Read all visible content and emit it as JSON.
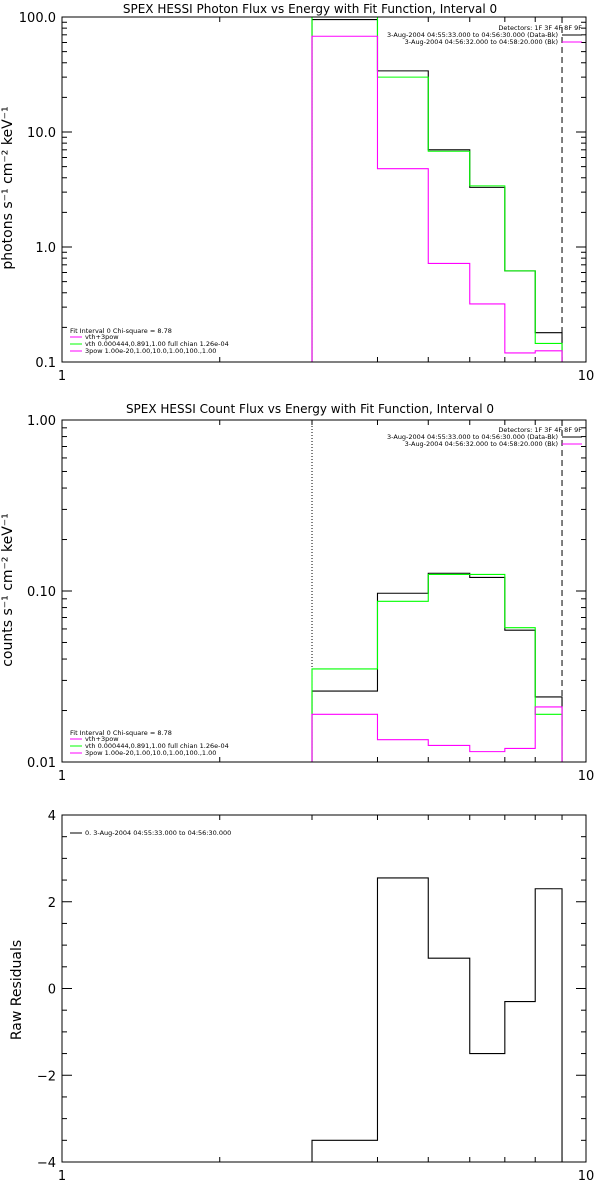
{
  "chart_data": [
    {
      "type": "line",
      "title": "SPEX HESSI Photon Flux vs Energy with Fit Function, Interval 0",
      "ylabel": "photons s⁻¹ cm⁻² keV⁻¹",
      "xlim": [
        1,
        10
      ],
      "ylim": [
        0.1,
        100
      ],
      "xscale": "log",
      "yscale": "log",
      "xticks": [
        "1",
        "10"
      ],
      "yticks": [
        "0.1",
        "1.0",
        "10.0",
        "100.0"
      ],
      "grid": false,
      "legend_placement": "bottom-left and top-right",
      "markers": [
        {
          "x": 3.0,
          "style": "dotted"
        },
        {
          "x": 9.0,
          "style": "dashed"
        }
      ],
      "detectors_label": "Detectors: 1F 3F 4F 8F 9F",
      "top_legend": [
        {
          "label": "3-Aug-2004 04:55:33.000 to 04:56:30.000 (Data-Bk)",
          "color": "#000000"
        },
        {
          "label": "3-Aug-2004 04:56:32.000 to 04:58:20.000 (Bk)",
          "color": "#ff00ff"
        }
      ],
      "fit_lines": [
        {
          "label": "Fit Interval 0   Chi-square = 8.78",
          "color": ""
        },
        {
          "label": "vth+3pow",
          "color": "#ff00ff"
        },
        {
          "label": "vth 0.000444,0.891,1.00  full chian 1.26e-04",
          "color": "#00ff00"
        },
        {
          "label": "3pow 1.00e-20,1.00,10.0,1.00,100.,1.00",
          "color": "#ff00ff"
        }
      ],
      "edges": [
        3.0,
        4.0,
        5.0,
        6.0,
        7.0,
        8.0,
        9.0
      ],
      "series": [
        {
          "name": "Data-Bk",
          "color": "#000000",
          "values": [
            95,
            34,
            7.0,
            3.3,
            0.62,
            0.18
          ]
        },
        {
          "name": "vth+3pow",
          "color": "#00ff00",
          "values": [
            140,
            30,
            6.8,
            3.4,
            0.62,
            0.145
          ]
        },
        {
          "name": "Bk",
          "color": "#ff00ff",
          "values": [
            68,
            4.8,
            0.72,
            0.32,
            0.12,
            0.125
          ]
        }
      ]
    },
    {
      "type": "line",
      "title": "SPEX HESSI Count Flux vs Energy with Fit Function, Interval 0",
      "ylabel": "counts s⁻¹ cm⁻² keV⁻¹",
      "xlim": [
        1,
        10
      ],
      "ylim": [
        0.01,
        1.0
      ],
      "xscale": "log",
      "yscale": "log",
      "xticks": [
        "1",
        "10"
      ],
      "yticks": [
        "0.01",
        "0.10",
        "1.00"
      ],
      "grid": false,
      "legend_placement": "bottom-left and top-right",
      "markers": [
        {
          "x": 3.0,
          "style": "dotted"
        },
        {
          "x": 9.0,
          "style": "dashed"
        }
      ],
      "detectors_label": "Detectors: 1F 3F 4F 8F 9F",
      "top_legend": [
        {
          "label": "3-Aug-2004 04:55:33.000 to 04:56:30.000 (Data-Bk)",
          "color": "#000000"
        },
        {
          "label": "3-Aug-2004 04:56:32.000 to 04:58:20.000 (Bk)",
          "color": "#ff00ff"
        }
      ],
      "fit_lines": [
        {
          "label": "Fit Interval 0   Chi-square = 8.78",
          "color": ""
        },
        {
          "label": "vth+3pow",
          "color": "#ff00ff"
        },
        {
          "label": "vth 0.000444,0.891,1.00  full chian 1.26e-04",
          "color": "#00ff00"
        },
        {
          "label": "3pow 1.00e-20,1.00,10.0,1.00,100.,1.00",
          "color": "#ff00ff"
        }
      ],
      "edges": [
        3.0,
        4.0,
        5.0,
        6.0,
        7.0,
        8.0,
        9.0
      ],
      "series": [
        {
          "name": "Data-Bk",
          "color": "#000000",
          "values": [
            0.026,
            0.097,
            0.127,
            0.12,
            0.059,
            0.024
          ]
        },
        {
          "name": "vth+3pow",
          "color": "#00ff00",
          "values": [
            0.035,
            0.087,
            0.125,
            0.125,
            0.061,
            0.019
          ]
        },
        {
          "name": "Bk",
          "color": "#ff00ff",
          "values": [
            0.019,
            0.0135,
            0.0125,
            0.0115,
            0.012,
            0.021
          ]
        }
      ]
    },
    {
      "type": "line",
      "title": "",
      "ylabel": "Raw Residuals",
      "xlim": [
        1,
        10
      ],
      "ylim": [
        -4,
        4
      ],
      "xscale": "log",
      "yscale": "linear",
      "xticks": [
        "1",
        "10"
      ],
      "yticks": [
        "−4",
        "−2",
        "0",
        "2",
        "4"
      ],
      "grid": false,
      "legend_placement": "top-left",
      "legend": [
        {
          "label": "0.  3-Aug-2004 04:55:33.000 to 04:56:30.000",
          "color": "#000000"
        }
      ],
      "edges": [
        3.0,
        4.0,
        5.0,
        6.0,
        7.0,
        8.0,
        9.0
      ],
      "series": [
        {
          "name": "",
          "color": "#000000",
          "values": [
            -3.5,
            2.55,
            0.7,
            -1.5,
            -0.3,
            2.3
          ]
        }
      ]
    }
  ]
}
